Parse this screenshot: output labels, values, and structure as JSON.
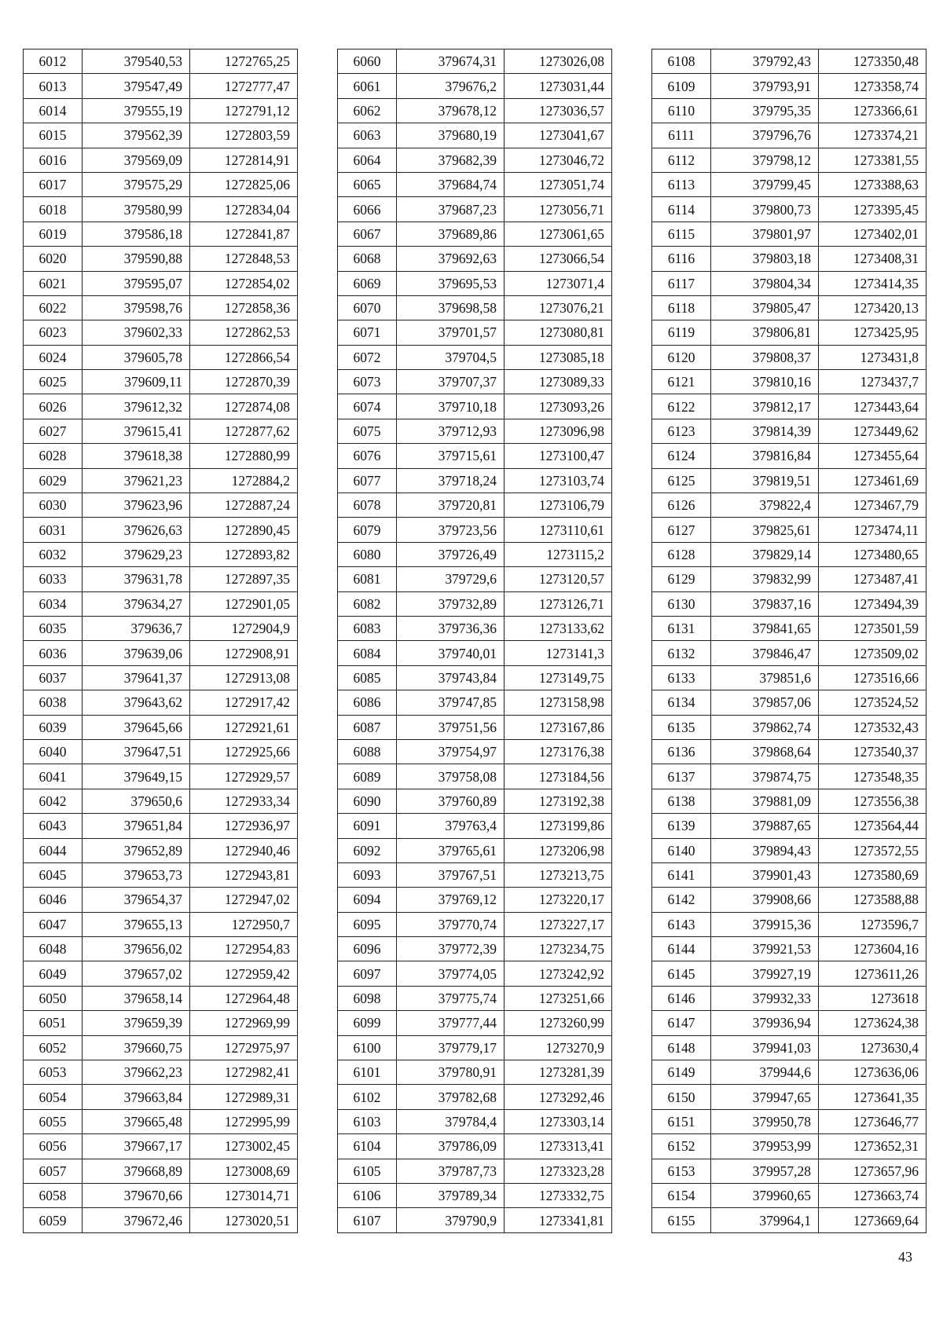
{
  "tables": [
    {
      "rows": [
        [
          "6012",
          "379540,53",
          "1272765,25"
        ],
        [
          "6013",
          "379547,49",
          "1272777,47"
        ],
        [
          "6014",
          "379555,19",
          "1272791,12"
        ],
        [
          "6015",
          "379562,39",
          "1272803,59"
        ],
        [
          "6016",
          "379569,09",
          "1272814,91"
        ],
        [
          "6017",
          "379575,29",
          "1272825,06"
        ],
        [
          "6018",
          "379580,99",
          "1272834,04"
        ],
        [
          "6019",
          "379586,18",
          "1272841,87"
        ],
        [
          "6020",
          "379590,88",
          "1272848,53"
        ],
        [
          "6021",
          "379595,07",
          "1272854,02"
        ],
        [
          "6022",
          "379598,76",
          "1272858,36"
        ],
        [
          "6023",
          "379602,33",
          "1272862,53"
        ],
        [
          "6024",
          "379605,78",
          "1272866,54"
        ],
        [
          "6025",
          "379609,11",
          "1272870,39"
        ],
        [
          "6026",
          "379612,32",
          "1272874,08"
        ],
        [
          "6027",
          "379615,41",
          "1272877,62"
        ],
        [
          "6028",
          "379618,38",
          "1272880,99"
        ],
        [
          "6029",
          "379621,23",
          "1272884,2"
        ],
        [
          "6030",
          "379623,96",
          "1272887,24"
        ],
        [
          "6031",
          "379626,63",
          "1272890,45"
        ],
        [
          "6032",
          "379629,23",
          "1272893,82"
        ],
        [
          "6033",
          "379631,78",
          "1272897,35"
        ],
        [
          "6034",
          "379634,27",
          "1272901,05"
        ],
        [
          "6035",
          "379636,7",
          "1272904,9"
        ],
        [
          "6036",
          "379639,06",
          "1272908,91"
        ],
        [
          "6037",
          "379641,37",
          "1272913,08"
        ],
        [
          "6038",
          "379643,62",
          "1272917,42"
        ],
        [
          "6039",
          "379645,66",
          "1272921,61"
        ],
        [
          "6040",
          "379647,51",
          "1272925,66"
        ],
        [
          "6041",
          "379649,15",
          "1272929,57"
        ],
        [
          "6042",
          "379650,6",
          "1272933,34"
        ],
        [
          "6043",
          "379651,84",
          "1272936,97"
        ],
        [
          "6044",
          "379652,89",
          "1272940,46"
        ],
        [
          "6045",
          "379653,73",
          "1272943,81"
        ],
        [
          "6046",
          "379654,37",
          "1272947,02"
        ],
        [
          "6047",
          "379655,13",
          "1272950,7"
        ],
        [
          "6048",
          "379656,02",
          "1272954,83"
        ],
        [
          "6049",
          "379657,02",
          "1272959,42"
        ],
        [
          "6050",
          "379658,14",
          "1272964,48"
        ],
        [
          "6051",
          "379659,39",
          "1272969,99"
        ],
        [
          "6052",
          "379660,75",
          "1272975,97"
        ],
        [
          "6053",
          "379662,23",
          "1272982,41"
        ],
        [
          "6054",
          "379663,84",
          "1272989,31"
        ],
        [
          "6055",
          "379665,48",
          "1272995,99"
        ],
        [
          "6056",
          "379667,17",
          "1273002,45"
        ],
        [
          "6057",
          "379668,89",
          "1273008,69"
        ],
        [
          "6058",
          "379670,66",
          "1273014,71"
        ],
        [
          "6059",
          "379672,46",
          "1273020,51"
        ]
      ]
    },
    {
      "rows": [
        [
          "6060",
          "379674,31",
          "1273026,08"
        ],
        [
          "6061",
          "379676,2",
          "1273031,44"
        ],
        [
          "6062",
          "379678,12",
          "1273036,57"
        ],
        [
          "6063",
          "379680,19",
          "1273041,67"
        ],
        [
          "6064",
          "379682,39",
          "1273046,72"
        ],
        [
          "6065",
          "379684,74",
          "1273051,74"
        ],
        [
          "6066",
          "379687,23",
          "1273056,71"
        ],
        [
          "6067",
          "379689,86",
          "1273061,65"
        ],
        [
          "6068",
          "379692,63",
          "1273066,54"
        ],
        [
          "6069",
          "379695,53",
          "1273071,4"
        ],
        [
          "6070",
          "379698,58",
          "1273076,21"
        ],
        [
          "6071",
          "379701,57",
          "1273080,81"
        ],
        [
          "6072",
          "379704,5",
          "1273085,18"
        ],
        [
          "6073",
          "379707,37",
          "1273089,33"
        ],
        [
          "6074",
          "379710,18",
          "1273093,26"
        ],
        [
          "6075",
          "379712,93",
          "1273096,98"
        ],
        [
          "6076",
          "379715,61",
          "1273100,47"
        ],
        [
          "6077",
          "379718,24",
          "1273103,74"
        ],
        [
          "6078",
          "379720,81",
          "1273106,79"
        ],
        [
          "6079",
          "379723,56",
          "1273110,61"
        ],
        [
          "6080",
          "379726,49",
          "1273115,2"
        ],
        [
          "6081",
          "379729,6",
          "1273120,57"
        ],
        [
          "6082",
          "379732,89",
          "1273126,71"
        ],
        [
          "6083",
          "379736,36",
          "1273133,62"
        ],
        [
          "6084",
          "379740,01",
          "1273141,3"
        ],
        [
          "6085",
          "379743,84",
          "1273149,75"
        ],
        [
          "6086",
          "379747,85",
          "1273158,98"
        ],
        [
          "6087",
          "379751,56",
          "1273167,86"
        ],
        [
          "6088",
          "379754,97",
          "1273176,38"
        ],
        [
          "6089",
          "379758,08",
          "1273184,56"
        ],
        [
          "6090",
          "379760,89",
          "1273192,38"
        ],
        [
          "6091",
          "379763,4",
          "1273199,86"
        ],
        [
          "6092",
          "379765,61",
          "1273206,98"
        ],
        [
          "6093",
          "379767,51",
          "1273213,75"
        ],
        [
          "6094",
          "379769,12",
          "1273220,17"
        ],
        [
          "6095",
          "379770,74",
          "1273227,17"
        ],
        [
          "6096",
          "379772,39",
          "1273234,75"
        ],
        [
          "6097",
          "379774,05",
          "1273242,92"
        ],
        [
          "6098",
          "379775,74",
          "1273251,66"
        ],
        [
          "6099",
          "379777,44",
          "1273260,99"
        ],
        [
          "6100",
          "379779,17",
          "1273270,9"
        ],
        [
          "6101",
          "379780,91",
          "1273281,39"
        ],
        [
          "6102",
          "379782,68",
          "1273292,46"
        ],
        [
          "6103",
          "379784,4",
          "1273303,14"
        ],
        [
          "6104",
          "379786,09",
          "1273313,41"
        ],
        [
          "6105",
          "379787,73",
          "1273323,28"
        ],
        [
          "6106",
          "379789,34",
          "1273332,75"
        ],
        [
          "6107",
          "379790,9",
          "1273341,81"
        ]
      ]
    },
    {
      "rows": [
        [
          "6108",
          "379792,43",
          "1273350,48"
        ],
        [
          "6109",
          "379793,91",
          "1273358,74"
        ],
        [
          "6110",
          "379795,35",
          "1273366,61"
        ],
        [
          "6111",
          "379796,76",
          "1273374,21"
        ],
        [
          "6112",
          "379798,12",
          "1273381,55"
        ],
        [
          "6113",
          "379799,45",
          "1273388,63"
        ],
        [
          "6114",
          "379800,73",
          "1273395,45"
        ],
        [
          "6115",
          "379801,97",
          "1273402,01"
        ],
        [
          "6116",
          "379803,18",
          "1273408,31"
        ],
        [
          "6117",
          "379804,34",
          "1273414,35"
        ],
        [
          "6118",
          "379805,47",
          "1273420,13"
        ],
        [
          "6119",
          "379806,81",
          "1273425,95"
        ],
        [
          "6120",
          "379808,37",
          "1273431,8"
        ],
        [
          "6121",
          "379810,16",
          "1273437,7"
        ],
        [
          "6122",
          "379812,17",
          "1273443,64"
        ],
        [
          "6123",
          "379814,39",
          "1273449,62"
        ],
        [
          "6124",
          "379816,84",
          "1273455,64"
        ],
        [
          "6125",
          "379819,51",
          "1273461,69"
        ],
        [
          "6126",
          "379822,4",
          "1273467,79"
        ],
        [
          "6127",
          "379825,61",
          "1273474,11"
        ],
        [
          "6128",
          "379829,14",
          "1273480,65"
        ],
        [
          "6129",
          "379832,99",
          "1273487,41"
        ],
        [
          "6130",
          "379837,16",
          "1273494,39"
        ],
        [
          "6131",
          "379841,65",
          "1273501,59"
        ],
        [
          "6132",
          "379846,47",
          "1273509,02"
        ],
        [
          "6133",
          "379851,6",
          "1273516,66"
        ],
        [
          "6134",
          "379857,06",
          "1273524,52"
        ],
        [
          "6135",
          "379862,74",
          "1273532,43"
        ],
        [
          "6136",
          "379868,64",
          "1273540,37"
        ],
        [
          "6137",
          "379874,75",
          "1273548,35"
        ],
        [
          "6138",
          "379881,09",
          "1273556,38"
        ],
        [
          "6139",
          "379887,65",
          "1273564,44"
        ],
        [
          "6140",
          "379894,43",
          "1273572,55"
        ],
        [
          "6141",
          "379901,43",
          "1273580,69"
        ],
        [
          "6142",
          "379908,66",
          "1273588,88"
        ],
        [
          "6143",
          "379915,36",
          "1273596,7"
        ],
        [
          "6144",
          "379921,53",
          "1273604,16"
        ],
        [
          "6145",
          "379927,19",
          "1273611,26"
        ],
        [
          "6146",
          "379932,33",
          "1273618"
        ],
        [
          "6147",
          "379936,94",
          "1273624,38"
        ],
        [
          "6148",
          "379941,03",
          "1273630,4"
        ],
        [
          "6149",
          "379944,6",
          "1273636,06"
        ],
        [
          "6150",
          "379947,65",
          "1273641,35"
        ],
        [
          "6151",
          "379950,78",
          "1273646,77"
        ],
        [
          "6152",
          "379953,99",
          "1273652,31"
        ],
        [
          "6153",
          "379957,28",
          "1273657,96"
        ],
        [
          "6154",
          "379960,65",
          "1273663,74"
        ],
        [
          "6155",
          "379964,1",
          "1273669,64"
        ]
      ]
    }
  ],
  "page_number": "43"
}
